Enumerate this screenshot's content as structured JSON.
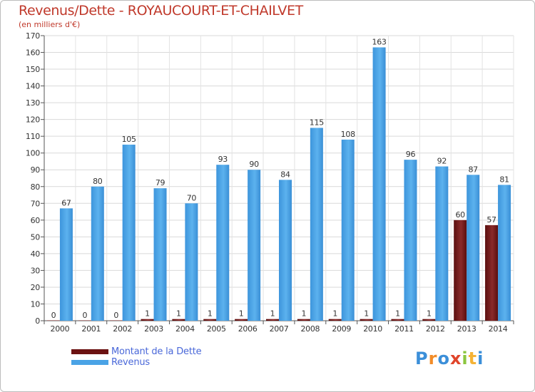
{
  "header": {
    "title": "Revenus/Dette - ROYAUCOURT-ET-CHAILVET",
    "subtitle": "(en milliers d'€)"
  },
  "chart_data": {
    "type": "bar",
    "title": "Revenus/Dette - ROYAUCOURT-ET-CHAILVET",
    "ylabel": "(en milliers d'€)",
    "xlabel": "",
    "ylim": [
      0,
      170
    ],
    "yticks": [
      0,
      10,
      20,
      30,
      40,
      50,
      60,
      70,
      80,
      90,
      100,
      110,
      120,
      130,
      140,
      150,
      160,
      170
    ],
    "grid": true,
    "legend_position": "bottom-left",
    "categories": [
      "2000",
      "2001",
      "2002",
      "2003",
      "2004",
      "2005",
      "2006",
      "2007",
      "2008",
      "2009",
      "2010",
      "2011",
      "2012",
      "2013",
      "2014"
    ],
    "series": [
      {
        "name": "Montant de la Dette",
        "color": "#7a1f1f",
        "values": [
          0,
          0,
          0,
          1,
          1,
          1,
          1,
          1,
          1,
          1,
          1,
          1,
          1,
          60,
          57
        ]
      },
      {
        "name": "Revenus",
        "color": "#4aa3e6",
        "values": [
          67,
          80,
          105,
          79,
          70,
          93,
          90,
          84,
          115,
          108,
          163,
          96,
          92,
          87,
          81
        ]
      }
    ]
  },
  "legend": {
    "items": [
      {
        "label": "Montant de la Dette",
        "color": "#6b1212"
      },
      {
        "label": "Revenus",
        "color": "#4aa3e6"
      }
    ]
  },
  "logo": {
    "text": "Proxiti",
    "letters": [
      {
        "ch": "P",
        "color": "#3b8fd9"
      },
      {
        "ch": "r",
        "color": "#f28c28"
      },
      {
        "ch": "o",
        "color": "#3b8fd9"
      },
      {
        "ch": "x",
        "color": "#e0452b"
      },
      {
        "ch": "i",
        "color": "#8cc63f"
      },
      {
        "ch": "t",
        "color": "#f5b335"
      },
      {
        "ch": "i",
        "color": "#3b8fd9"
      }
    ]
  }
}
